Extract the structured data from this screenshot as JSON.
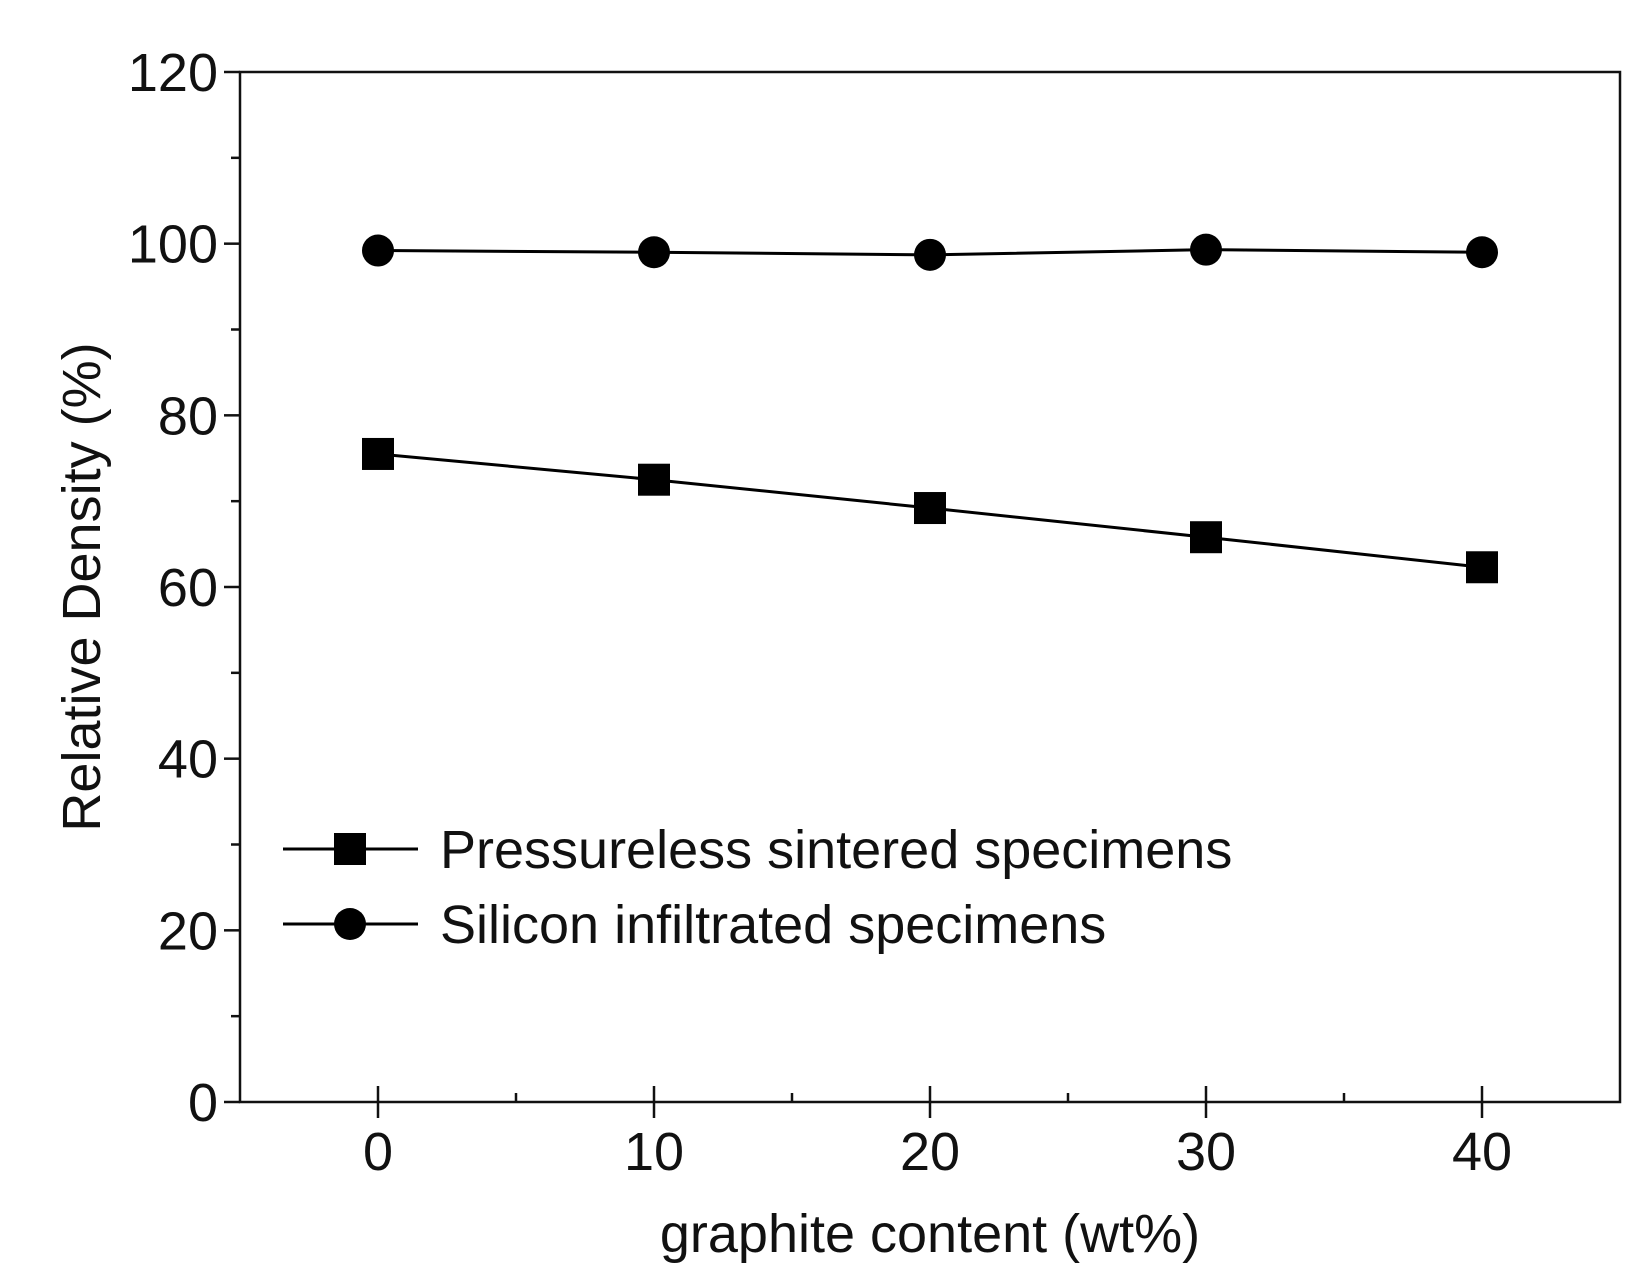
{
  "chart_data": {
    "type": "line",
    "title": "",
    "xlabel": "graphite content (wt%)",
    "ylabel": "Relative Density (%)",
    "x": [
      0,
      10,
      20,
      30,
      40
    ],
    "xlim": [
      -5,
      45
    ],
    "ylim": [
      0,
      120
    ],
    "xticks": [
      0,
      10,
      20,
      30,
      40
    ],
    "xtick_labels": [
      "0",
      "10",
      "20",
      "30",
      "40"
    ],
    "yticks": [
      0,
      20,
      40,
      60,
      80,
      100,
      120
    ],
    "ytick_labels": [
      "0",
      "20",
      "40",
      "60",
      "80",
      "100",
      "120"
    ],
    "grid": false,
    "legend_position": "bottom-left",
    "series": [
      {
        "name": "Pressureless sintered specimens",
        "marker": "square",
        "color": "#000000",
        "values": [
          75.5,
          72.5,
          69.2,
          65.8,
          62.3
        ]
      },
      {
        "name": "Silicon infiltrated specimens",
        "marker": "circle",
        "color": "#000000",
        "values": [
          99.2,
          99.0,
          98.7,
          99.3,
          99.0
        ]
      }
    ]
  }
}
